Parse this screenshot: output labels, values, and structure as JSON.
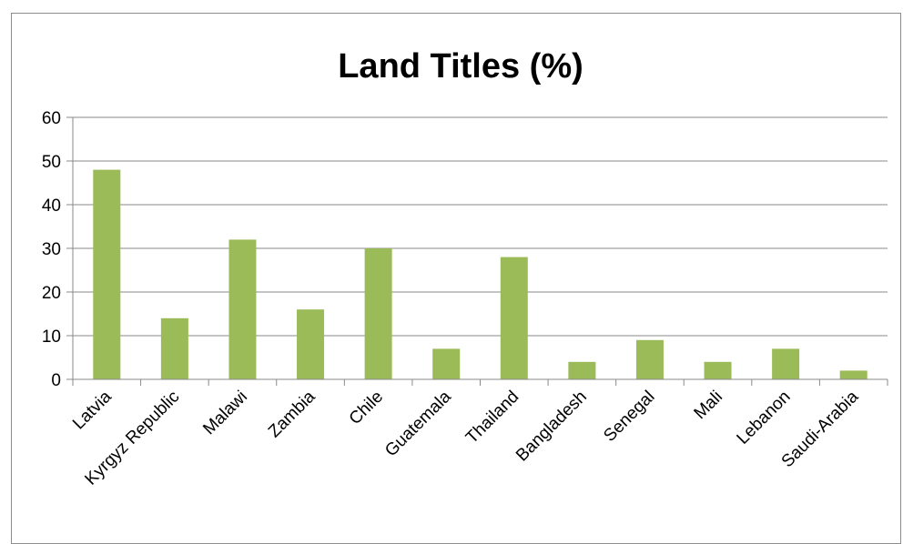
{
  "chart_data": {
    "type": "bar",
    "title": "Land Titles (%)",
    "xlabel": "",
    "ylabel": "",
    "categories": [
      "Latvia",
      "Kyrgyz Republic",
      "Malawi",
      "Zambia",
      "Chile",
      "Guatemala",
      "Thailand",
      "Bangladesh",
      "Senegal",
      "Mali",
      "Lebanon",
      "Saudi-Arabia"
    ],
    "values": [
      48,
      14,
      32,
      16,
      30,
      7,
      28,
      4,
      9,
      4,
      7,
      2
    ],
    "ylim": [
      0,
      60
    ],
    "yticks": [
      0,
      10,
      20,
      30,
      40,
      50,
      60
    ],
    "grid": true,
    "legend": "none",
    "bar_color": "#9bbb59"
  }
}
